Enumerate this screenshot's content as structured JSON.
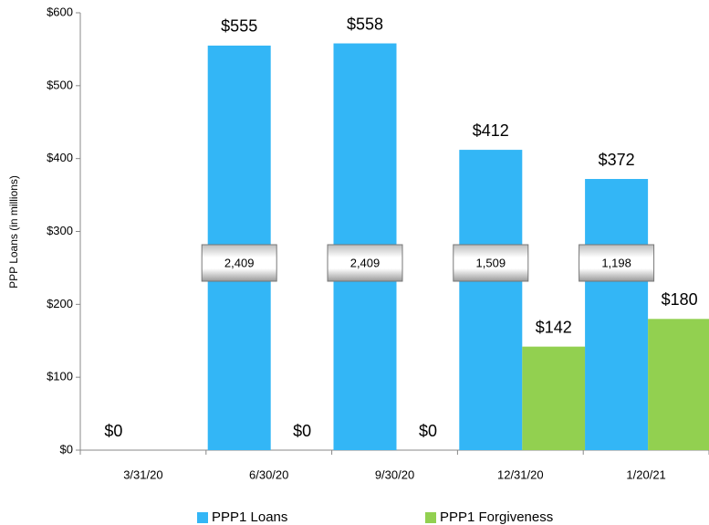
{
  "chart_data": {
    "type": "bar",
    "categories": [
      "3/31/20",
      "6/30/20",
      "9/30/20",
      "12/31/20",
      "1/20/21"
    ],
    "y_axis_label": "PPP Loans (in millions)",
    "series": [
      {
        "name": "PPP1 Loans",
        "color": "#33b6f6",
        "values": [
          0,
          555,
          558,
          412,
          372
        ],
        "value_labels": [
          "$0",
          "$555",
          "$558",
          "$412",
          "$372"
        ],
        "counts": [
          null,
          2409,
          2409,
          1509,
          1198
        ],
        "count_labels": [
          null,
          "2,409",
          "2,409",
          "1,509",
          "1,198"
        ]
      },
      {
        "name": "PPP1 Forgiveness",
        "color": "#92d050",
        "values": [
          null,
          0,
          0,
          142,
          180
        ],
        "value_labels": [
          null,
          "$0",
          "$0",
          "$142",
          "$180"
        ]
      }
    ],
    "ylim": [
      0,
      600
    ],
    "yticks": [
      {
        "value": 0,
        "label": "$0"
      },
      {
        "value": 100,
        "label": "$100"
      },
      {
        "value": 200,
        "label": "$200"
      },
      {
        "value": 300,
        "label": "$300"
      },
      {
        "value": 400,
        "label": "$400"
      },
      {
        "value": 500,
        "label": "$500"
      },
      {
        "value": 600,
        "label": "$600"
      }
    ],
    "grid": false,
    "legend": "bottom"
  }
}
